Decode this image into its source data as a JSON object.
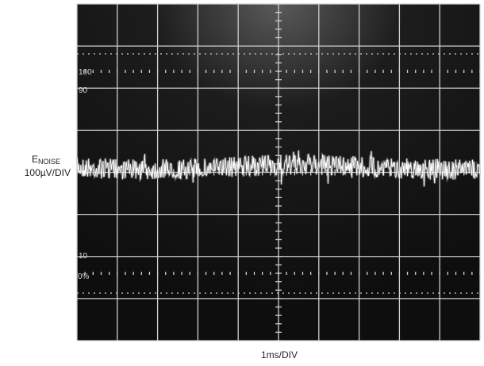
{
  "y_label": {
    "main": "E",
    "subscript": "NOISE",
    "scale": "100µV/DIV"
  },
  "x_label": "1ms/DIV",
  "graticule_labels": {
    "top": "100",
    "upper": "90",
    "lower": "10",
    "bottom": "0%"
  }
}
